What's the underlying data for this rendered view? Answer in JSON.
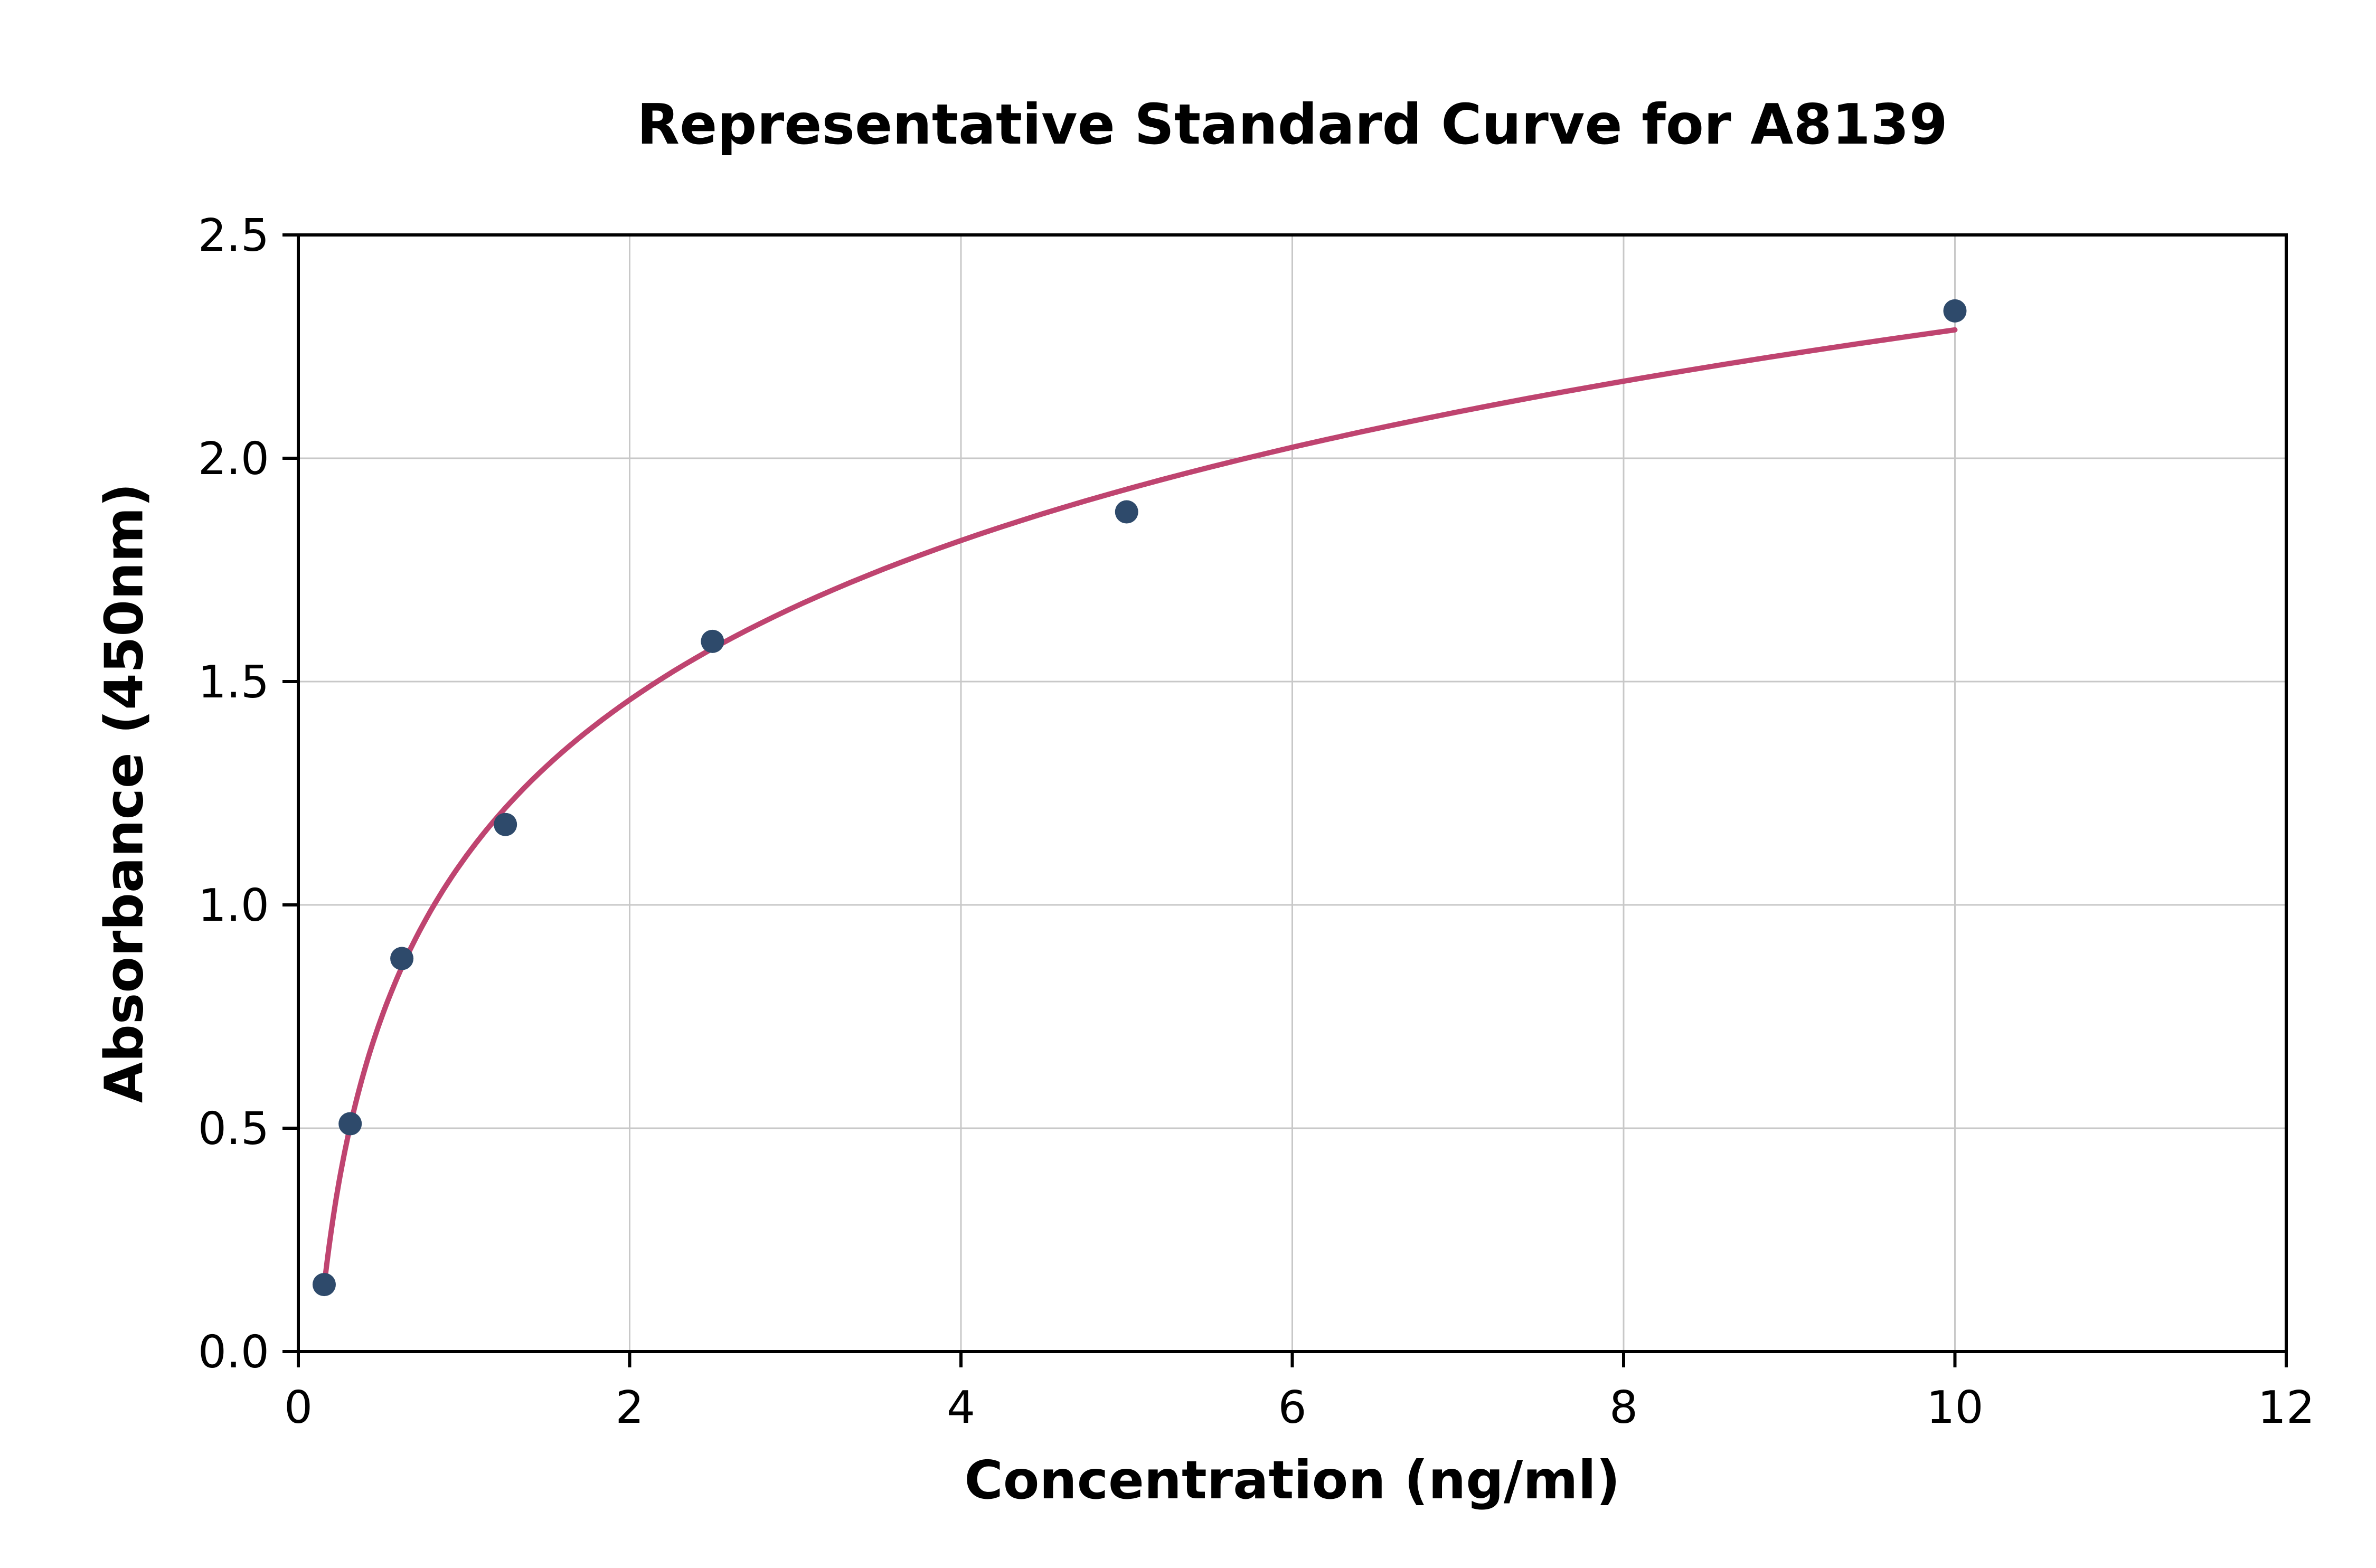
{
  "chart_data": {
    "type": "scatter",
    "title": "Representative Standard Curve for A8139",
    "xlabel": "Concentration (ng/ml)",
    "ylabel": "Absorbance (450nm)",
    "xlim": [
      0,
      12
    ],
    "ylim": [
      0,
      2.5
    ],
    "xticks": [
      0,
      2,
      4,
      6,
      8,
      10,
      12
    ],
    "xtick_labels": [
      "0",
      "2",
      "4",
      "6",
      "8",
      "10",
      "12"
    ],
    "yticks": [
      0,
      0.5,
      1.0,
      1.5,
      2.0,
      2.5
    ],
    "ytick_labels": [
      "0.0",
      "0.5",
      "1.0",
      "1.5",
      "2.0",
      "2.5"
    ],
    "grid": true,
    "legend": "none",
    "points": [
      {
        "x": 0.156,
        "y": 0.15
      },
      {
        "x": 0.313,
        "y": 0.51
      },
      {
        "x": 0.625,
        "y": 0.88
      },
      {
        "x": 1.25,
        "y": 1.18
      },
      {
        "x": 2.5,
        "y": 1.59
      },
      {
        "x": 5.0,
        "y": 1.88
      },
      {
        "x": 10.0,
        "y": 2.33
      }
    ],
    "fit_type": "logarithmic",
    "colors": {
      "marker": "#2e4a6b",
      "curve": "#bf4470",
      "grid": "#c8c8c8",
      "axis": "#000000",
      "background": "#ffffff"
    }
  }
}
